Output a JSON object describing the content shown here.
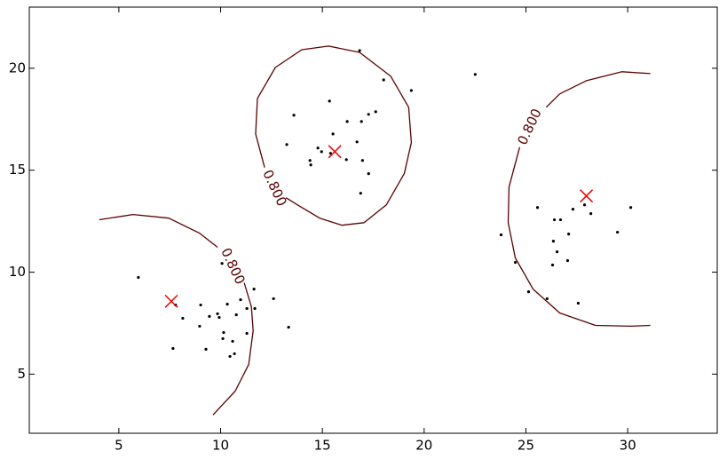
{
  "chart_data": {
    "type": "scatter",
    "xlim": [
      0.6,
      34.4
    ],
    "ylim": [
      2.1,
      23
    ],
    "xticks": [
      5,
      10,
      15,
      20,
      25,
      30
    ],
    "yticks": [
      5,
      10,
      15,
      20
    ],
    "grid": false,
    "points": {
      "color": "#000000",
      "x": [
        5.96,
        7.79,
        8.14,
        9.02,
        9.45,
        9.85,
        9.93,
        10.33,
        10.77,
        8.97,
        10.15,
        10.11,
        10.59,
        11.29,
        9.28,
        10.46,
        10.68,
        7.66,
        11.29,
        11.68,
        11.64,
        10.98,
        10.07,
        12.6,
        13.34,
        16.83,
        18.01,
        19.37,
        22.51,
        13.6,
        15.35,
        17.62,
        17.27,
        16.92,
        16.22,
        15.52,
        13.25,
        16.7,
        14.78,
        14.96,
        15.4,
        16.18,
        16.97,
        14.39,
        14.43,
        17.27,
        16.88,
        25.57,
        27.31,
        27.88,
        30.15,
        26.4,
        26.7,
        28.19,
        29.5,
        23.78,
        27.1,
        26.35,
        26.53,
        24.48,
        26.31,
        27.05,
        25.13,
        26.04,
        27.57
      ],
      "y": [
        9.74,
        8.39,
        7.74,
        8.39,
        7.83,
        7.96,
        7.78,
        8.43,
        7.91,
        7.35,
        7.04,
        6.74,
        6.61,
        7.0,
        6.22,
        5.87,
        6.0,
        6.26,
        8.22,
        8.22,
        9.17,
        8.65,
        10.43,
        8.7,
        7.3,
        20.87,
        19.43,
        18.91,
        19.7,
        17.7,
        18.39,
        17.87,
        17.74,
        17.39,
        17.39,
        16.78,
        16.26,
        16.39,
        16.09,
        15.91,
        15.83,
        15.52,
        15.48,
        15.48,
        15.26,
        14.83,
        13.87,
        13.17,
        13.09,
        13.3,
        13.17,
        12.57,
        12.57,
        12.87,
        11.96,
        11.83,
        11.87,
        11.52,
        11.0,
        10.48,
        10.35,
        10.57,
        9.04,
        8.7,
        8.48
      ]
    },
    "centroids": {
      "color": "#ee0000",
      "x": [
        7.58,
        15.61,
        27.97
      ],
      "y": [
        8.57,
        15.91,
        13.74
      ]
    },
    "contours": [
      {
        "level": {
          "value": 0.8,
          "label": "0.800"
        },
        "color": "#5a0000",
        "x": [
          4.04,
          5.7,
          7.45,
          8.97,
          9.85,
          null,
          11.16,
          11.51,
          11.6,
          11.38,
          10.72,
          9.63
        ],
        "y": [
          12.57,
          12.83,
          12.65,
          11.91,
          11.22,
          null,
          9.48,
          8.3,
          7.13,
          5.48,
          4.17,
          3.0
        ]
      },
      {
        "level": {
          "value": 0.8,
          "label": "0.800"
        },
        "color": "#5a0000",
        "x": [
          12.16,
          11.72,
          11.81,
          12.69,
          13.99,
          15.3,
          16.83,
          18.36,
          19.24,
          19.37,
          19.02,
          18.14,
          17.05,
          15.96,
          14.87,
          13.78,
          13.21
        ],
        "y": [
          15.13,
          16.78,
          18.52,
          20.04,
          20.91,
          21.09,
          20.78,
          19.61,
          18.09,
          16.35,
          14.83,
          13.3,
          12.43,
          12.3,
          12.65,
          13.3,
          13.65
        ]
      },
      {
        "level": {
          "value": 0.8,
          "label": "0.800"
        },
        "color": "#5a0000",
        "x": [
          31.11,
          29.72,
          27.97,
          26.66,
          26.0,
          null,
          24.69,
          24.17,
          24.13,
          24.48,
          25.35,
          26.66,
          28.41,
          30.15,
          31.11
        ],
        "y": [
          19.74,
          19.83,
          19.39,
          18.74,
          18.09,
          null,
          16.13,
          14.17,
          12.43,
          10.7,
          9.17,
          8.0,
          7.39,
          7.35,
          7.39
        ]
      }
    ]
  }
}
